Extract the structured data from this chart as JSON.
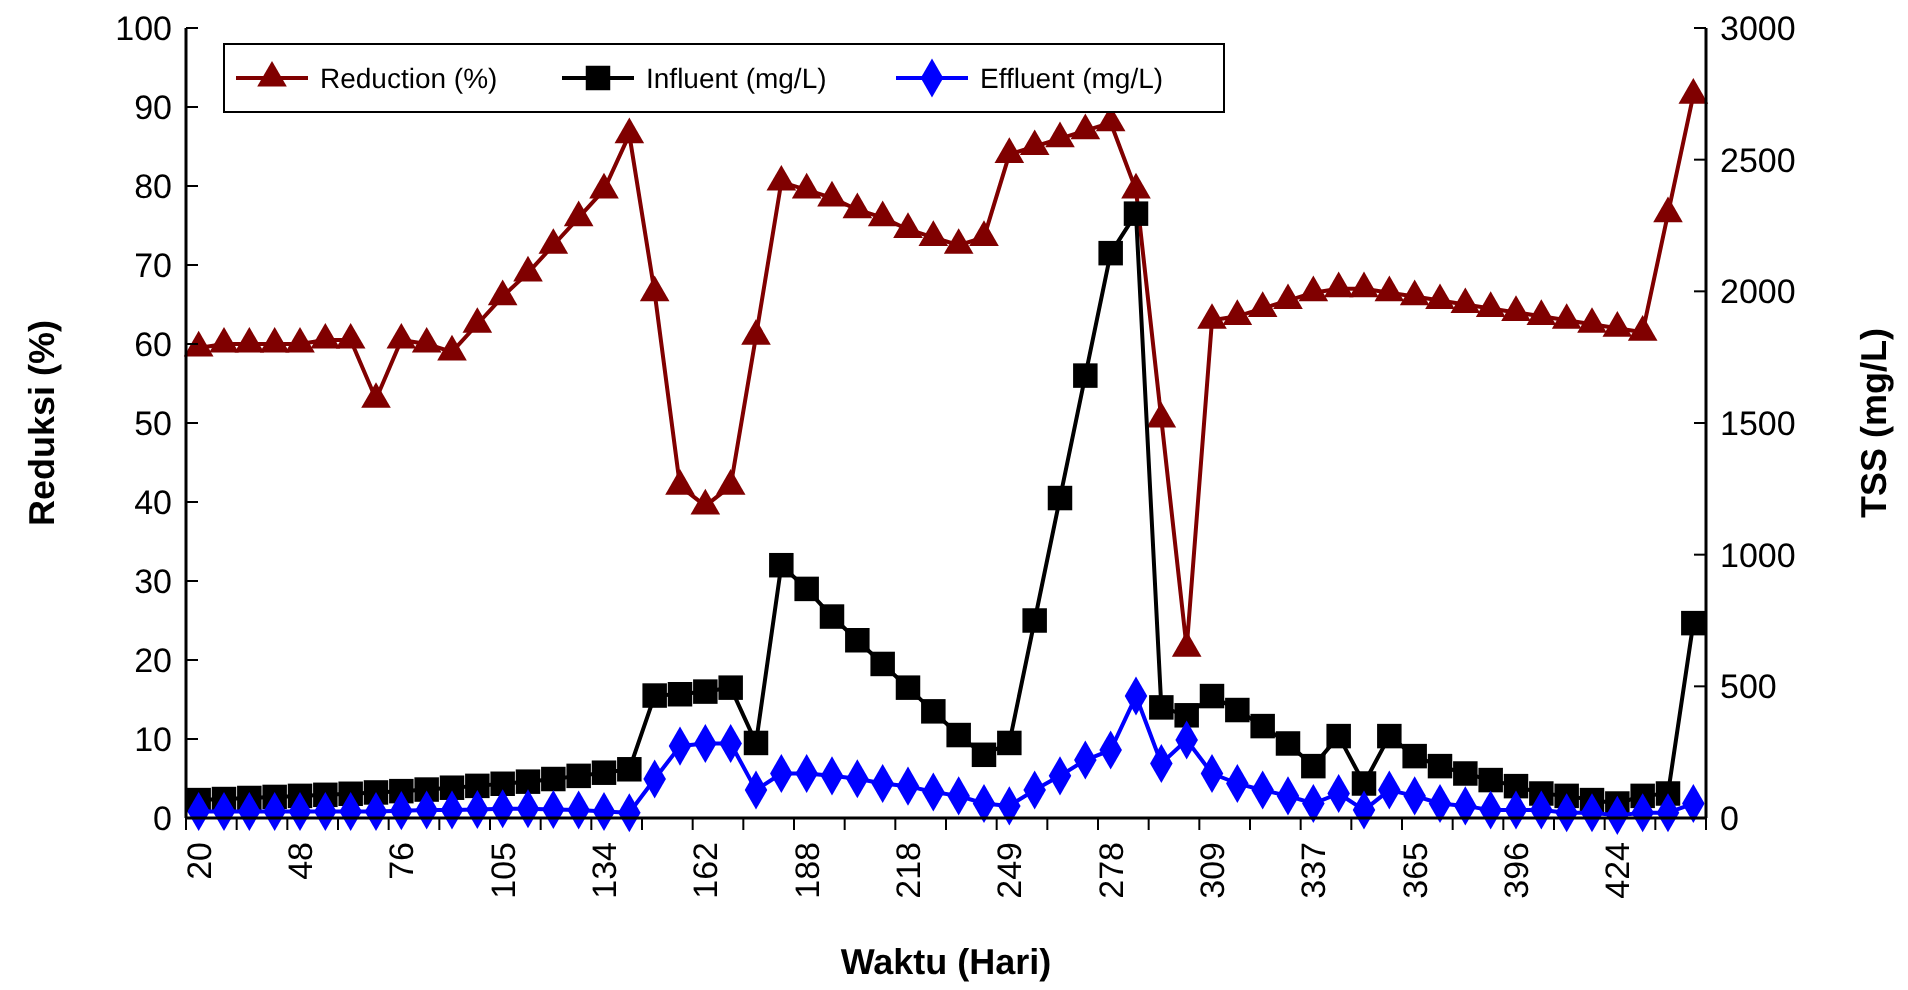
{
  "chart_data": {
    "type": "line",
    "xlabel": "Waktu (Hari)",
    "ylabel": "Reduksi (%)",
    "y2label": "TSS (mg/L)",
    "categories": [
      "20",
      null,
      null,
      null,
      "48",
      null,
      null,
      null,
      "76",
      null,
      null,
      null,
      "105",
      null,
      null,
      null,
      "134",
      null,
      null,
      null,
      "162",
      null,
      null,
      null,
      "188",
      null,
      null,
      null,
      "218",
      null,
      null,
      null,
      "249",
      null,
      null,
      null,
      "278",
      null,
      null,
      null,
      "309",
      null,
      null,
      null,
      "337",
      null,
      null,
      null,
      "365",
      null,
      null,
      null,
      "396",
      null,
      null,
      null,
      "424",
      null,
      null,
      null
    ],
    "ylim": [
      0,
      100
    ],
    "yticks": [
      0,
      10,
      20,
      30,
      40,
      50,
      60,
      70,
      80,
      90,
      100
    ],
    "y2lim": [
      0,
      3000
    ],
    "y2ticks": [
      0,
      500,
      1000,
      1500,
      2000,
      2500,
      3000
    ],
    "grid": false,
    "legend": "top",
    "line_style": "solid",
    "series": [
      {
        "name": "Reduction (%)",
        "color": "#800000",
        "marker": "triangle",
        "values": [
          59.5,
          60,
          60,
          60,
          60,
          60.5,
          60.5,
          53,
          60.5,
          60,
          59,
          62.5,
          66,
          69,
          72.5,
          76,
          79.5,
          86.5,
          66.5,
          42,
          39.5,
          42,
          61,
          80.5,
          79.5,
          78.5,
          77,
          76,
          74.5,
          73.5,
          72.5,
          73.5,
          84,
          85,
          86,
          87,
          88,
          79.5,
          50.5,
          21.5,
          63,
          63.5,
          64.5,
          65.5,
          66.5,
          67,
          67,
          66.5,
          66,
          65.5,
          65,
          64.5,
          64,
          63.5,
          63,
          62.5,
          62,
          61.5,
          76.5,
          91.5
        ]
      },
      {
        "name": "Influent (mg/L)",
        "color": "#000000",
        "marker": "square",
        "axis": "y2",
        "values": [
          68,
          72,
          76,
          80,
          84,
          88,
          92,
          97,
          102,
          108,
          115,
          122,
          130,
          138,
          148,
          160,
          172,
          185,
          465,
          470,
          480,
          495,
          285,
          960,
          870,
          765,
          675,
          585,
          495,
          405,
          315,
          240,
          285,
          750,
          1215,
          1680,
          2145,
          2295,
          420,
          390,
          463,
          410,
          349,
          283,
          197,
          311,
          131,
          311,
          235,
          197,
          169,
          144,
          121,
          93,
          84,
          68,
          55,
          84,
          93,
          740
        ]
      },
      {
        "name": "Effluent (mg/L)",
        "color": "#0000ff",
        "marker": "diamond",
        "axis": "y2",
        "values": [
          25,
          25,
          25,
          25,
          25,
          25,
          25,
          25,
          28,
          30,
          30,
          32,
          35,
          35,
          32,
          30,
          25,
          20,
          148,
          273,
          283,
          283,
          106,
          169,
          169,
          160,
          149,
          131,
          121,
          99,
          84,
          55,
          46,
          106,
          160,
          220,
          258,
          463,
          207,
          296,
          169,
          131,
          106,
          84,
          55,
          93,
          30,
          106,
          84,
          55,
          46,
          30,
          30,
          30,
          20,
          20,
          10,
          20,
          20,
          55
        ]
      }
    ]
  }
}
